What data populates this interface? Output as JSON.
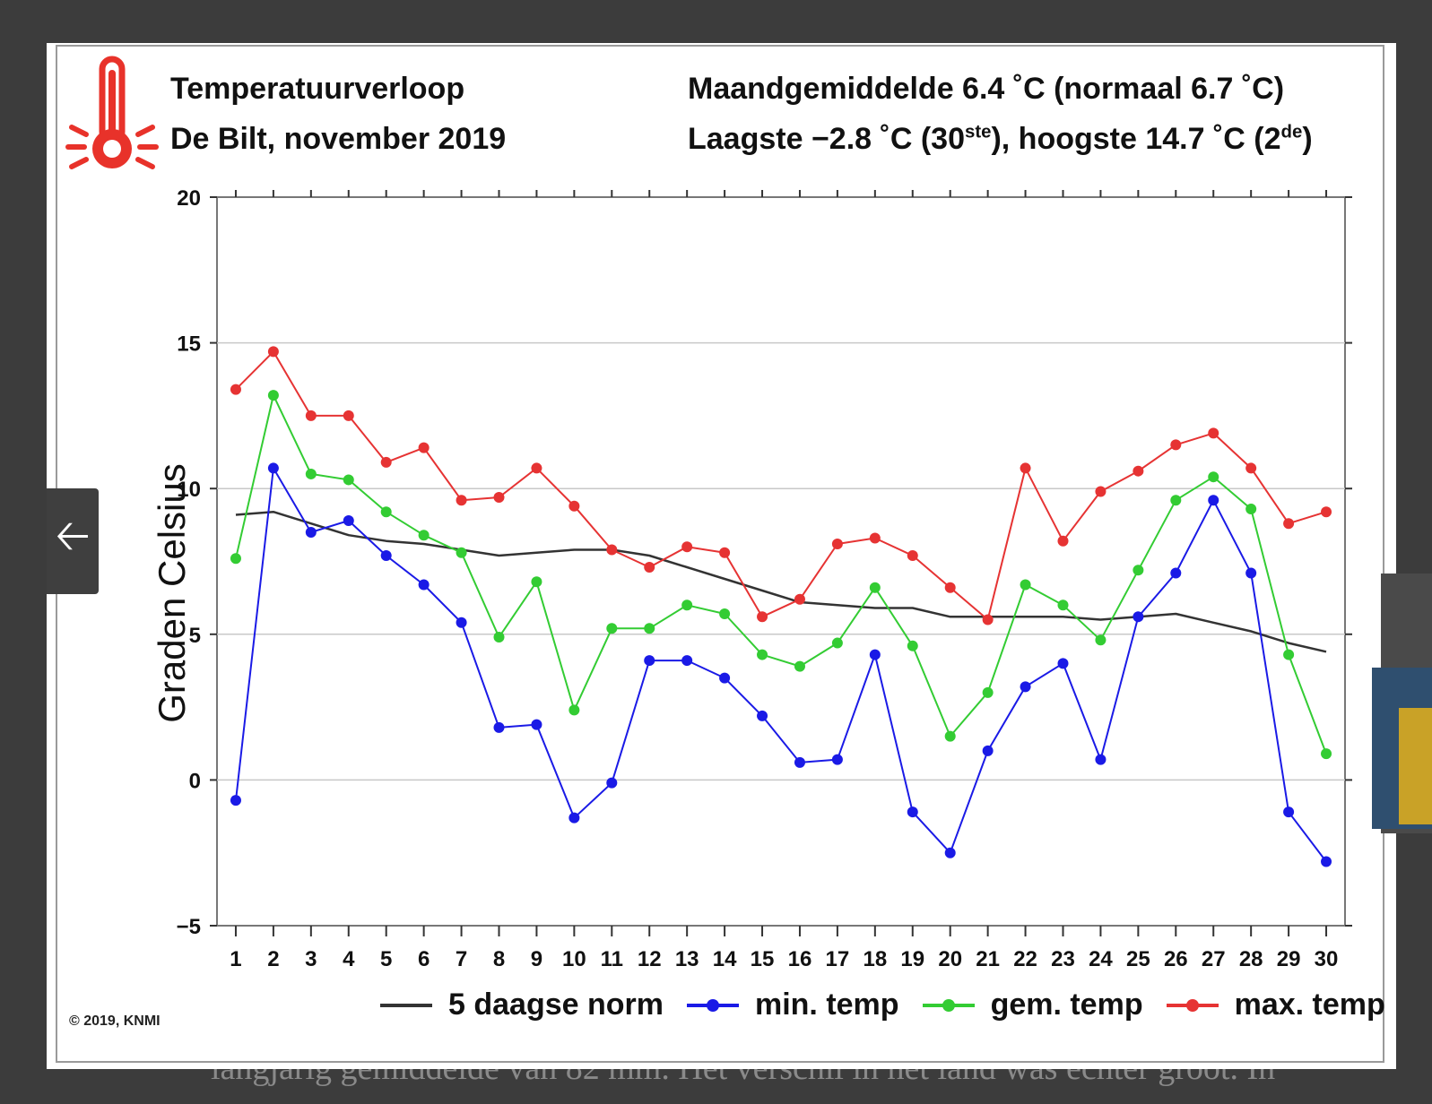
{
  "page": {
    "background_text": "langjarig gemiddelde van 82 mm. Het verschil in het land was echter groot. In"
  },
  "header": {
    "title_line1": "Temperatuurverloop",
    "title_line2": "De Bilt, november 2019",
    "stats_line1": "Maandgemiddelde 6.4 ˚C (normaal 6.7 ˚C)",
    "stats_line2_a": "Laagste −2.8 ˚C (30",
    "stats_line2_sup1": "ste",
    "stats_line2_b": "), hoogste 14.7 ˚C (2",
    "stats_line2_sup2": "de",
    "stats_line2_c": ")"
  },
  "footer": {
    "copyright": "© 2019, KNMI"
  },
  "nav": {
    "back_icon": "arrow-left-icon"
  },
  "colors": {
    "norm": "#333333",
    "min": "#1a1ae6",
    "gem": "#33cc33",
    "max": "#e63333",
    "thermometer": "#e8322a"
  },
  "chart_data": {
    "type": "line",
    "ylabel": "Graden Celsius",
    "xlabel": "",
    "ylim": [
      -5,
      20
    ],
    "yticks": [
      -5,
      0,
      5,
      10,
      15,
      20
    ],
    "ytick_labels": [
      "−5",
      "0",
      "5",
      "10",
      "15",
      "20"
    ],
    "grid": true,
    "legend_position": "bottom",
    "x": [
      1,
      2,
      3,
      4,
      5,
      6,
      7,
      8,
      9,
      10,
      11,
      12,
      13,
      14,
      15,
      16,
      17,
      18,
      19,
      20,
      21,
      22,
      23,
      24,
      25,
      26,
      27,
      28,
      29,
      30
    ],
    "series": [
      {
        "name": "5 daagse norm",
        "markers": false,
        "values": [
          9.1,
          9.2,
          8.8,
          8.4,
          8.2,
          8.1,
          7.9,
          7.7,
          7.8,
          7.9,
          7.9,
          7.7,
          7.3,
          6.9,
          6.5,
          6.1,
          6.0,
          5.9,
          5.9,
          5.6,
          5.6,
          5.6,
          5.6,
          5.5,
          5.6,
          5.7,
          5.4,
          5.1,
          4.7,
          4.4
        ]
      },
      {
        "name": "min. temp",
        "markers": true,
        "values": [
          -0.7,
          10.7,
          8.5,
          8.9,
          7.7,
          6.7,
          5.4,
          1.8,
          1.9,
          -1.3,
          -0.1,
          4.1,
          4.1,
          3.5,
          2.2,
          0.6,
          0.7,
          4.3,
          -1.1,
          -2.5,
          1.0,
          3.2,
          4.0,
          0.7,
          5.6,
          7.1,
          9.6,
          7.1,
          -1.1,
          -2.8
        ]
      },
      {
        "name": "gem. temp",
        "markers": true,
        "values": [
          7.6,
          13.2,
          10.5,
          10.3,
          9.2,
          8.4,
          7.8,
          4.9,
          6.8,
          2.4,
          5.2,
          5.2,
          6.0,
          5.7,
          4.3,
          3.9,
          4.7,
          6.6,
          4.6,
          1.5,
          3.0,
          6.7,
          6.0,
          4.8,
          7.2,
          9.6,
          10.4,
          9.3,
          4.3,
          0.9
        ]
      },
      {
        "name": "max. temp",
        "markers": true,
        "values": [
          13.4,
          14.7,
          12.5,
          12.5,
          10.9,
          11.4,
          9.6,
          9.7,
          10.7,
          9.4,
          7.9,
          7.3,
          8.0,
          7.8,
          5.6,
          6.2,
          8.1,
          8.3,
          7.7,
          6.6,
          5.5,
          10.7,
          8.2,
          9.9,
          10.6,
          11.5,
          11.9,
          10.7,
          8.8,
          9.2
        ]
      }
    ]
  }
}
